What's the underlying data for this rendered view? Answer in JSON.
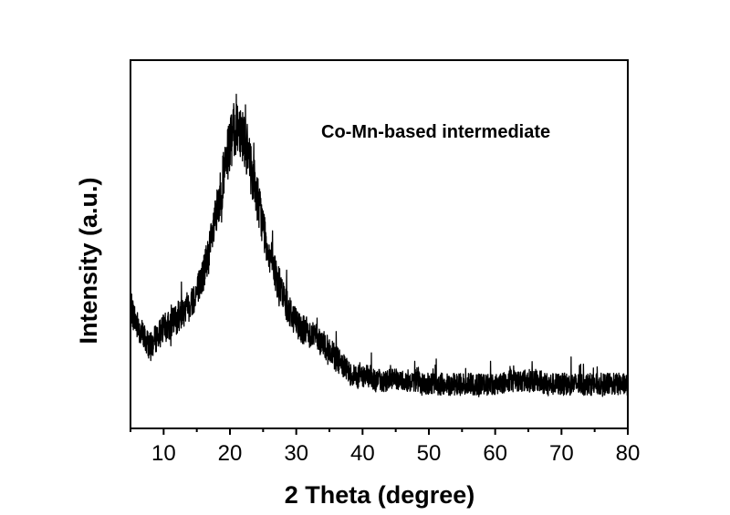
{
  "chart_data": {
    "type": "line",
    "title": "",
    "xlabel": "2 Theta (degree)",
    "ylabel": "Intensity (a.u.)",
    "annotation": "Co-Mn-based intermediate",
    "xlim": [
      5,
      80
    ],
    "ylim": [
      0,
      100
    ],
    "y_tick_labels_shown": false,
    "grid": false,
    "x_ticks": [
      10,
      20,
      30,
      40,
      50,
      60,
      70,
      80
    ],
    "x_tick_labels": [
      "10",
      "20",
      "30",
      "40",
      "50",
      "60",
      "70",
      "80"
    ],
    "series": [
      {
        "color": "#000000",
        "x": [
          5,
          6,
          7,
          8,
          9,
          10,
          11,
          12,
          13,
          14,
          15,
          16,
          17,
          18,
          19,
          20,
          20.5,
          21,
          21.5,
          22,
          23,
          24,
          25,
          26,
          27,
          28,
          29,
          30,
          31,
          32,
          33,
          34,
          35,
          36,
          37,
          38,
          39,
          40,
          41,
          42,
          43,
          44,
          45,
          46,
          47,
          48,
          49,
          50,
          52,
          54,
          56,
          58,
          60,
          62,
          64,
          66,
          68,
          70,
          72,
          74,
          76,
          78,
          80
        ],
        "y": [
          33,
          28,
          25,
          22,
          25,
          27,
          28,
          30,
          32,
          34,
          37,
          42,
          49,
          58,
          68,
          77,
          80,
          83,
          82,
          80,
          72,
          64,
          55,
          47,
          41,
          36,
          32,
          29,
          27,
          26,
          25,
          23,
          21,
          19,
          17,
          15,
          14,
          14,
          14,
          13,
          13,
          13,
          13,
          13,
          13,
          13,
          12,
          12,
          12,
          12,
          12,
          12,
          12,
          13,
          13,
          13,
          12,
          12,
          12,
          12,
          12,
          12,
          12
        ]
      }
    ]
  }
}
